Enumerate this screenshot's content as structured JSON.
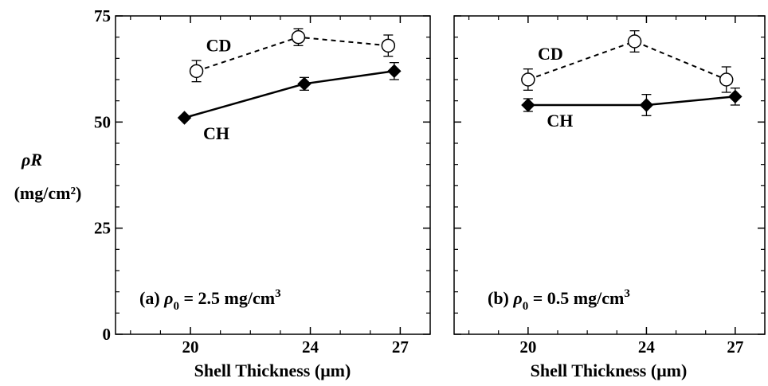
{
  "figure": {
    "ylabel_top": "ρR",
    "ylabel_bottom": "(mg/cm²)"
  },
  "chart_data": [
    {
      "type": "line",
      "panel": "a",
      "panel_label_prefix": "(a) ",
      "panel_label_rho": "ρ",
      "panel_label_sub": "0",
      "panel_label_rest": " = 2.5 mg/cm",
      "panel_label_sup": "3",
      "xlabel": "Shell Thickness (μm)",
      "ylabel": "ρR (mg/cm²)",
      "xlim": [
        17.5,
        28.0
      ],
      "ylim": [
        0,
        75
      ],
      "x_ticks": [
        20,
        24,
        27
      ],
      "y_ticks": [
        0,
        25,
        50,
        75
      ],
      "series": [
        {
          "name": "CD",
          "style": "dashed",
          "marker": "open-circle",
          "points": [
            {
              "x": 20.2,
              "y": 62,
              "err": 2.5
            },
            {
              "x": 23.6,
              "y": 70,
              "err": 2.0
            },
            {
              "x": 26.6,
              "y": 68,
              "err": 2.5
            }
          ]
        },
        {
          "name": "CH",
          "style": "solid",
          "marker": "filled-diamond",
          "points": [
            {
              "x": 19.8,
              "y": 51,
              "err": 0
            },
            {
              "x": 23.8,
              "y": 59,
              "err": 1.5
            },
            {
              "x": 26.8,
              "y": 62,
              "err": 2.0
            }
          ]
        }
      ]
    },
    {
      "type": "line",
      "panel": "b",
      "panel_label_prefix": "(b) ",
      "panel_label_rho": "ρ",
      "panel_label_sub": "0",
      "panel_label_rest": " = 0.5 mg/cm",
      "panel_label_sup": "3",
      "xlabel": "Shell Thickness (μm)",
      "ylabel": "ρR (mg/cm²)",
      "xlim": [
        17.5,
        28.0
      ],
      "ylim": [
        0,
        75
      ],
      "x_ticks": [
        20,
        24,
        27
      ],
      "y_ticks": [
        0,
        25,
        50,
        75
      ],
      "series": [
        {
          "name": "CD",
          "style": "dashed",
          "marker": "open-circle",
          "points": [
            {
              "x": 20.0,
              "y": 60,
              "err": 2.5
            },
            {
              "x": 23.6,
              "y": 69,
              "err": 2.5
            },
            {
              "x": 26.7,
              "y": 60,
              "err": 3.0
            }
          ]
        },
        {
          "name": "CH",
          "style": "solid",
          "marker": "filled-diamond",
          "points": [
            {
              "x": 20.0,
              "y": 54,
              "err": 1.5
            },
            {
              "x": 24.0,
              "y": 54,
              "err": 2.5
            },
            {
              "x": 27.0,
              "y": 56,
              "err": 2.0
            }
          ]
        }
      ]
    }
  ]
}
